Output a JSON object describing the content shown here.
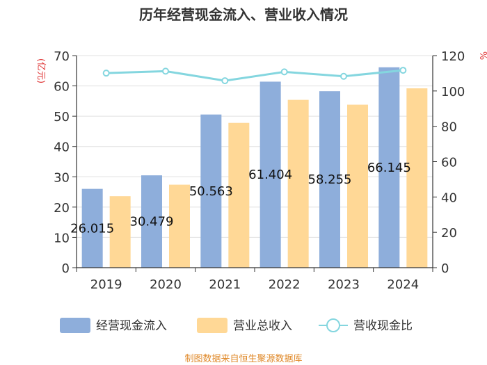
{
  "chart_data": {
    "type": "bar",
    "title": "历年经营现金流入、营业收入情况",
    "categories": [
      "2019",
      "2020",
      "2021",
      "2022",
      "2023",
      "2024"
    ],
    "series": [
      {
        "name": "经营现金流入",
        "type": "bar",
        "axis": "left",
        "color": "#8eaedb",
        "values": [
          26.015,
          30.479,
          50.563,
          61.404,
          58.255,
          66.145
        ],
        "labels": [
          "26.015",
          "30.479",
          "50.563",
          "61.404",
          "58.255",
          "66.145"
        ]
      },
      {
        "name": "营业总收入",
        "type": "bar",
        "axis": "left",
        "color": "#ffd896",
        "values": [
          23.6,
          27.4,
          47.8,
          55.4,
          53.8,
          59.2
        ]
      },
      {
        "name": "营收现金比",
        "type": "line",
        "axis": "right",
        "color": "#84d6df",
        "values": [
          110.1,
          111.2,
          105.8,
          110.8,
          108.3,
          111.7
        ]
      }
    ],
    "left_axis": {
      "label": "(亿元)",
      "min": 0,
      "max": 70,
      "ticks": [
        "0",
        "10",
        "20",
        "30",
        "40",
        "50",
        "60",
        "70"
      ]
    },
    "right_axis": {
      "label": "%",
      "min": 0,
      "max": 120,
      "ticks": [
        "0",
        "20",
        "40",
        "60",
        "80",
        "100",
        "120"
      ]
    },
    "grid": true,
    "legend_position": "bottom"
  },
  "footer": {
    "source": "制图数据来自恒生聚源数据库"
  }
}
